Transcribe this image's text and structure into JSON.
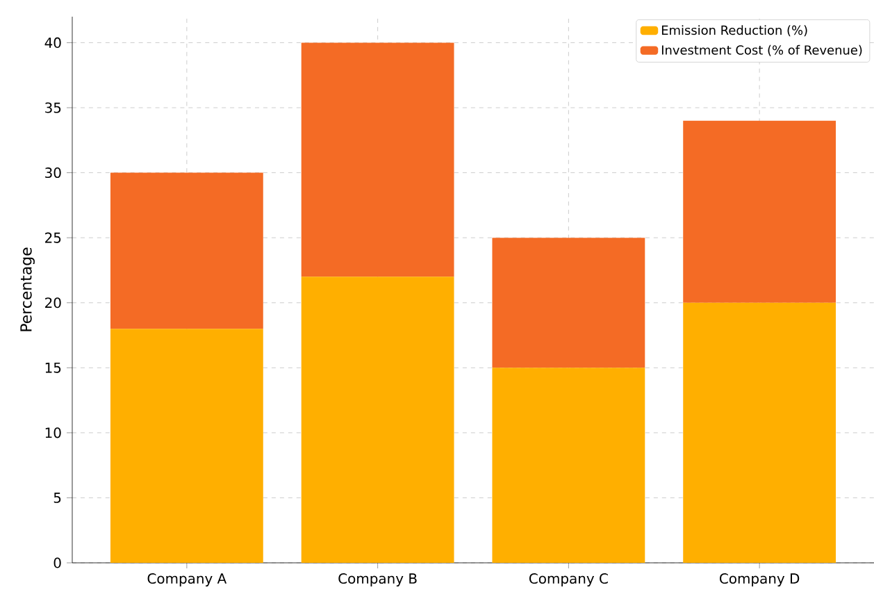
{
  "chart_data": {
    "type": "bar",
    "stacked": true,
    "ylabel": "Percentage",
    "categories": [
      "Company A",
      "Company B",
      "Company C",
      "Company D"
    ],
    "series": [
      {
        "name": "Emission Reduction (%)",
        "color": "#ffaf00",
        "values": [
          18,
          22,
          15,
          20
        ]
      },
      {
        "name": "Investment Cost (% of Revenue)",
        "color": "#f46b25",
        "values": [
          12,
          18,
          10,
          14
        ]
      }
    ],
    "ylim": [
      0,
      42
    ],
    "yticks": [
      0,
      5,
      10,
      15,
      20,
      25,
      30,
      35,
      40
    ],
    "grid": true,
    "legend": "top right"
  }
}
